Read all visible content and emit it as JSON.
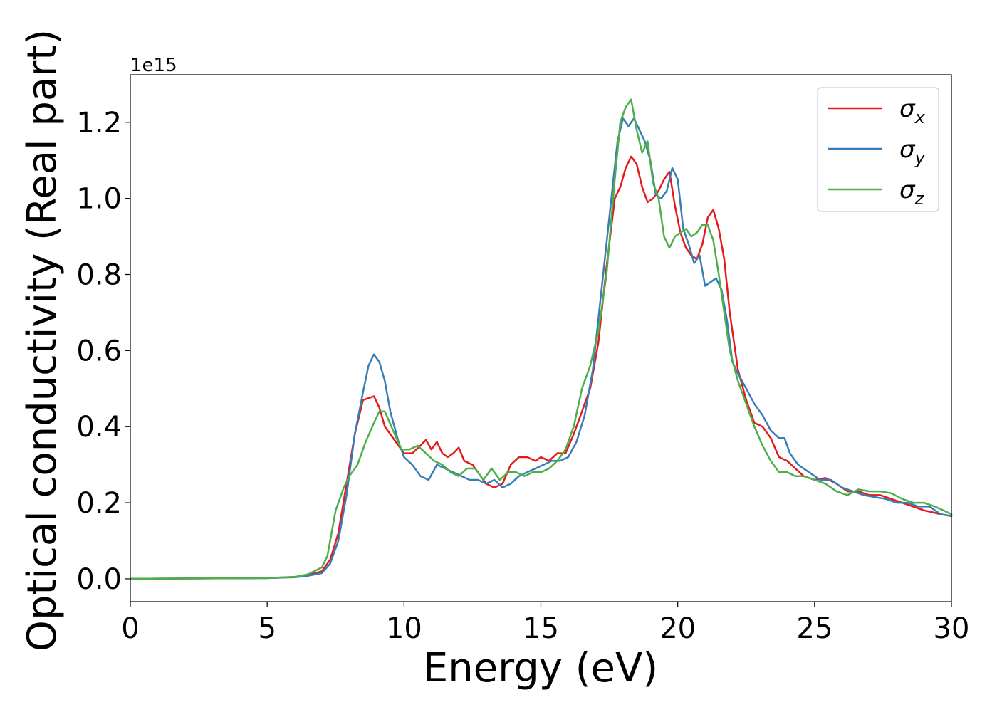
{
  "chart_data": {
    "type": "line",
    "title": "",
    "xlabel": "Energy (eV)",
    "ylabel": "Optical conductivity (Real part)",
    "y_offset_label": "1e15",
    "xlim": [
      0,
      30
    ],
    "ylim": [
      -0.06,
      1.325
    ],
    "xticks": [
      0,
      5,
      10,
      15,
      20,
      25,
      30
    ],
    "yticks": [
      0.0,
      0.2,
      0.4,
      0.6,
      0.8,
      1.0,
      1.2
    ],
    "xtick_labels": [
      "0",
      "5",
      "10",
      "15",
      "20",
      "25",
      "30"
    ],
    "ytick_labels": [
      "0.0",
      "0.2",
      "0.4",
      "0.6",
      "0.8",
      "1.0",
      "1.2"
    ],
    "grid": false,
    "legend_position": "top-right",
    "series": [
      {
        "name": "σx",
        "symbol": "σ",
        "subscript": "x",
        "color": "#e41a1c",
        "x": [
          0,
          5,
          6,
          6.5,
          7,
          7.3,
          7.6,
          7.9,
          8.2,
          8.5,
          8.7,
          8.9,
          9.1,
          9.3,
          9.5,
          9.8,
          10.0,
          10.3,
          10.6,
          10.8,
          11.0,
          11.2,
          11.4,
          11.6,
          11.8,
          12.0,
          12.2,
          12.5,
          12.8,
          13.0,
          13.3,
          13.6,
          13.9,
          14.2,
          14.5,
          14.8,
          15.0,
          15.3,
          15.6,
          15.9,
          16.2,
          16.5,
          16.8,
          17.1,
          17.4,
          17.7,
          17.9,
          18.1,
          18.3,
          18.5,
          18.7,
          18.9,
          19.1,
          19.3,
          19.5,
          19.7,
          19.9,
          20.1,
          20.3,
          20.5,
          20.7,
          20.9,
          21.1,
          21.3,
          21.5,
          21.7,
          21.9,
          22.2,
          22.5,
          22.8,
          23.1,
          23.4,
          23.7,
          24.0,
          24.3,
          24.6,
          25.0,
          25.4,
          25.8,
          26.2,
          26.6,
          27.0,
          27.4,
          27.8,
          28.2,
          28.6,
          29.0,
          29.3,
          29.6,
          30.0
        ],
        "y": [
          0.0,
          0.002,
          0.005,
          0.01,
          0.02,
          0.05,
          0.12,
          0.25,
          0.38,
          0.47,
          0.475,
          0.48,
          0.45,
          0.4,
          0.38,
          0.35,
          0.33,
          0.33,
          0.35,
          0.365,
          0.34,
          0.36,
          0.33,
          0.32,
          0.33,
          0.345,
          0.31,
          0.3,
          0.27,
          0.25,
          0.24,
          0.25,
          0.3,
          0.32,
          0.32,
          0.31,
          0.32,
          0.31,
          0.33,
          0.33,
          0.38,
          0.44,
          0.5,
          0.62,
          0.82,
          1.0,
          1.03,
          1.08,
          1.11,
          1.09,
          1.03,
          0.99,
          1.0,
          1.02,
          1.05,
          1.07,
          0.98,
          0.91,
          0.87,
          0.85,
          0.84,
          0.88,
          0.95,
          0.97,
          0.92,
          0.84,
          0.7,
          0.55,
          0.47,
          0.41,
          0.4,
          0.37,
          0.32,
          0.31,
          0.29,
          0.27,
          0.26,
          0.265,
          0.25,
          0.23,
          0.23,
          0.22,
          0.22,
          0.21,
          0.2,
          0.19,
          0.18,
          0.175,
          0.17,
          0.165
        ]
      },
      {
        "name": "σy",
        "symbol": "σ",
        "subscript": "y",
        "color": "#377eb8",
        "x": [
          0,
          5,
          6,
          6.5,
          7,
          7.3,
          7.6,
          7.9,
          8.2,
          8.5,
          8.7,
          8.9,
          9.1,
          9.3,
          9.5,
          9.8,
          10.0,
          10.3,
          10.6,
          10.9,
          11.2,
          11.5,
          11.8,
          12.1,
          12.4,
          12.7,
          13.0,
          13.3,
          13.6,
          13.9,
          14.2,
          14.5,
          14.8,
          15.1,
          15.4,
          15.7,
          16.0,
          16.3,
          16.6,
          16.9,
          17.2,
          17.5,
          17.8,
          18.0,
          18.2,
          18.4,
          18.6,
          18.8,
          19.0,
          19.2,
          19.4,
          19.6,
          19.8,
          20.0,
          20.2,
          20.4,
          20.6,
          20.8,
          21.0,
          21.2,
          21.4,
          21.6,
          21.8,
          22.0,
          22.2,
          22.5,
          22.8,
          23.1,
          23.4,
          23.7,
          23.9,
          24.1,
          24.4,
          24.8,
          25.2,
          25.6,
          26.0,
          26.4,
          26.8,
          27.2,
          27.6,
          28.0,
          28.4,
          28.8,
          29.2,
          29.6,
          30.0
        ],
        "y": [
          0.0,
          0.002,
          0.004,
          0.008,
          0.015,
          0.04,
          0.1,
          0.22,
          0.38,
          0.49,
          0.56,
          0.59,
          0.57,
          0.52,
          0.44,
          0.36,
          0.32,
          0.3,
          0.27,
          0.26,
          0.3,
          0.29,
          0.28,
          0.27,
          0.26,
          0.26,
          0.25,
          0.26,
          0.24,
          0.25,
          0.27,
          0.28,
          0.29,
          0.3,
          0.31,
          0.31,
          0.32,
          0.36,
          0.43,
          0.55,
          0.75,
          0.95,
          1.15,
          1.21,
          1.19,
          1.21,
          1.18,
          1.15,
          1.1,
          1.01,
          1.0,
          1.02,
          1.08,
          1.05,
          0.92,
          0.88,
          0.83,
          0.85,
          0.77,
          0.78,
          0.79,
          0.76,
          0.68,
          0.57,
          0.54,
          0.5,
          0.46,
          0.43,
          0.39,
          0.37,
          0.37,
          0.33,
          0.3,
          0.28,
          0.26,
          0.26,
          0.24,
          0.23,
          0.22,
          0.215,
          0.21,
          0.2,
          0.2,
          0.19,
          0.19,
          0.17,
          0.165
        ]
      },
      {
        "name": "σz",
        "symbol": "σ",
        "subscript": "z",
        "color": "#4daf4a",
        "x": [
          0,
          5,
          6,
          6.5,
          7,
          7.2,
          7.5,
          7.8,
          8.0,
          8.3,
          8.6,
          8.9,
          9.1,
          9.3,
          9.6,
          9.9,
          10.2,
          10.5,
          10.8,
          11.1,
          11.4,
          11.7,
          12.0,
          12.3,
          12.6,
          12.9,
          13.2,
          13.5,
          13.8,
          14.1,
          14.4,
          14.7,
          15.0,
          15.3,
          15.6,
          15.9,
          16.2,
          16.5,
          16.8,
          17.1,
          17.4,
          17.7,
          17.9,
          18.1,
          18.3,
          18.5,
          18.7,
          18.9,
          19.1,
          19.3,
          19.5,
          19.7,
          19.9,
          20.1,
          20.3,
          20.5,
          20.7,
          20.9,
          21.1,
          21.3,
          21.5,
          21.7,
          21.9,
          22.2,
          22.5,
          22.8,
          23.1,
          23.4,
          23.7,
          24.0,
          24.3,
          24.6,
          25.0,
          25.4,
          25.8,
          26.2,
          26.6,
          27.0,
          27.4,
          27.8,
          28.2,
          28.6,
          29.0,
          29.4,
          29.7,
          30.0
        ],
        "y": [
          0.0,
          0.002,
          0.005,
          0.012,
          0.03,
          0.06,
          0.18,
          0.24,
          0.27,
          0.3,
          0.36,
          0.41,
          0.44,
          0.44,
          0.39,
          0.34,
          0.34,
          0.35,
          0.33,
          0.31,
          0.3,
          0.28,
          0.27,
          0.29,
          0.29,
          0.26,
          0.29,
          0.26,
          0.28,
          0.28,
          0.27,
          0.28,
          0.28,
          0.29,
          0.31,
          0.34,
          0.4,
          0.5,
          0.56,
          0.65,
          0.8,
          1.05,
          1.2,
          1.24,
          1.26,
          1.18,
          1.12,
          1.15,
          1.04,
          1.0,
          0.9,
          0.87,
          0.9,
          0.91,
          0.92,
          0.9,
          0.91,
          0.93,
          0.93,
          0.89,
          0.8,
          0.7,
          0.6,
          0.52,
          0.46,
          0.4,
          0.35,
          0.31,
          0.28,
          0.28,
          0.27,
          0.27,
          0.26,
          0.25,
          0.23,
          0.22,
          0.235,
          0.23,
          0.23,
          0.225,
          0.21,
          0.2,
          0.2,
          0.19,
          0.18,
          0.17
        ]
      }
    ]
  }
}
